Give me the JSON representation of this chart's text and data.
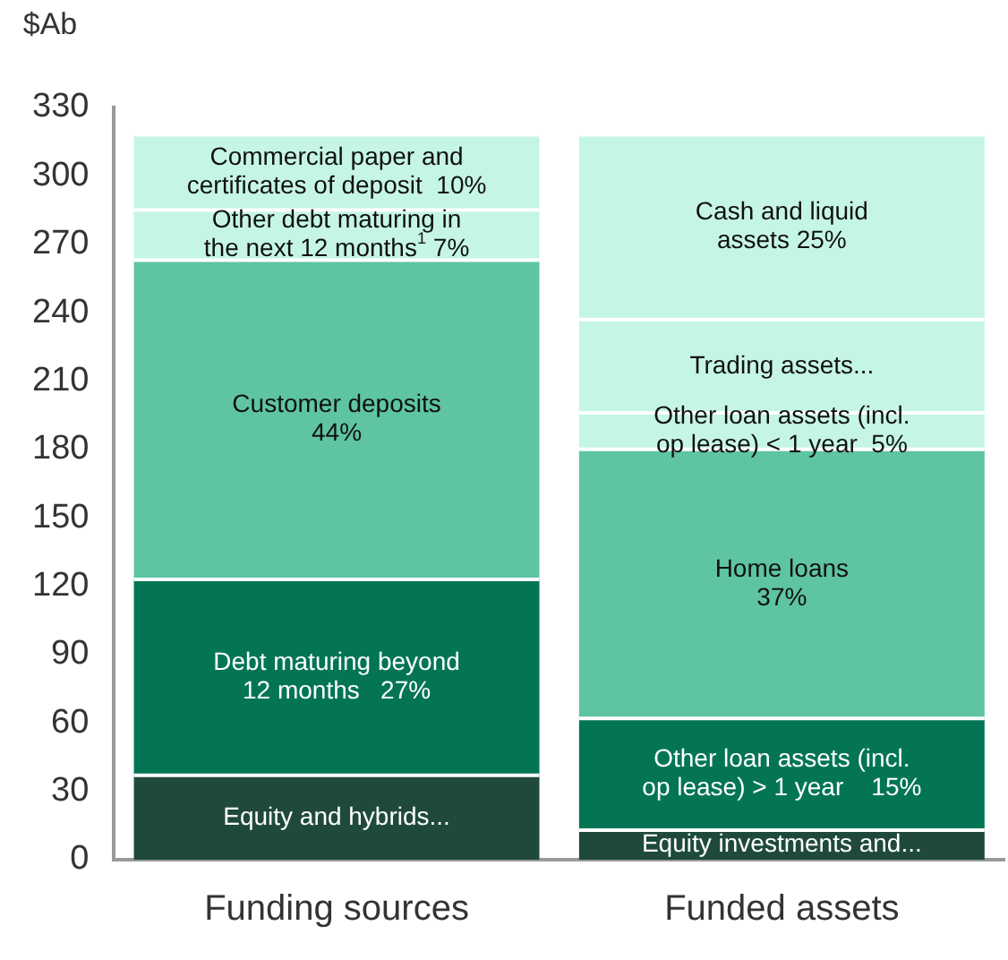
{
  "chart_data": {
    "type": "bar",
    "stacked": true,
    "ylabel": "$Ab",
    "categories": [
      "Funding sources",
      "Funded assets"
    ],
    "ylim": [
      0,
      330
    ],
    "yticks": [
      0,
      30,
      60,
      90,
      120,
      150,
      180,
      210,
      240,
      270,
      300,
      330
    ],
    "grid": false,
    "legend": false,
    "series": [
      {
        "name": "Equity and hybrids...",
        "color": "#1f4a3a",
        "values": [
          37,
          null
        ]
      },
      {
        "name": "Debt maturing beyond\n12 months   27%",
        "color": "#037555",
        "values": [
          86,
          null
        ]
      },
      {
        "name": "Customer deposits\n44%",
        "color": "#5ec4a4",
        "values": [
          140,
          null
        ]
      },
      {
        "name": "Other debt maturing in\nthe next 12 months$^{1}$ 7%",
        "color": "#c5f5e6",
        "values": [
          22,
          null
        ]
      },
      {
        "name": "Commercial paper and\ncertificates of deposit  10%",
        "color": "#c5f5e6",
        "values": [
          33,
          null
        ]
      },
      {
        "name": "Equity investments and...",
        "color": "#1f4a3a",
        "values": [
          null,
          13
        ]
      },
      {
        "name": "Other loan assets (incl.\nop lease) > 1 year    15%",
        "color": "#037555",
        "values": [
          null,
          49
        ]
      },
      {
        "name": "Home loans\n37%",
        "color": "#5ec4a4",
        "values": [
          null,
          118
        ]
      },
      {
        "name": "Other loan assets (incl.\nop lease) < 1 year  5%",
        "color": "#c5f5e6",
        "values": [
          null,
          16
        ]
      },
      {
        "name": "Trading assets...",
        "color": "#c5f5e6",
        "values": [
          null,
          41
        ]
      },
      {
        "name": "Cash and liquid\nassets 25%",
        "color": "#c5f5e6",
        "values": [
          null,
          81
        ]
      }
    ]
  }
}
